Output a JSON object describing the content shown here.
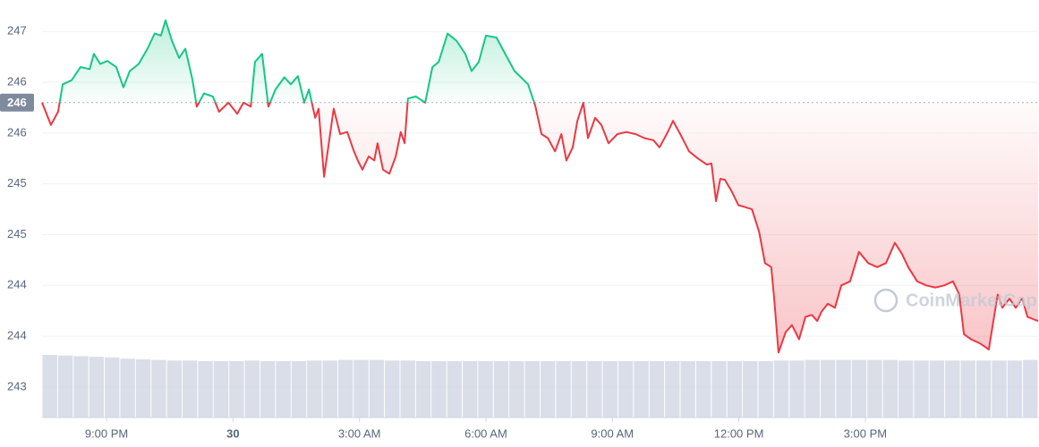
{
  "chart_data": {
    "type": "line",
    "watermark": "CoinMarketCap",
    "baseline": {
      "value": 246.2,
      "label": "246"
    },
    "x": [
      19.47,
      19.68,
      19.85,
      19.96,
      20.17,
      20.38,
      20.6,
      20.7,
      20.85,
      21.02,
      21.23,
      21.4,
      21.55,
      21.76,
      21.97,
      22.14,
      22.29,
      22.4,
      22.55,
      22.72,
      22.87,
      23.04,
      23.14,
      23.31,
      23.52,
      23.67,
      23.89,
      24.1,
      24.25,
      24.42,
      24.52,
      24.69,
      24.84,
      25.01,
      25.22,
      25.37,
      25.54,
      25.69,
      25.8,
      25.95,
      26.03,
      26.16,
      26.39,
      26.54,
      26.71,
      26.86,
      26.96,
      27.07,
      27.22,
      27.35,
      27.43,
      27.56,
      27.71,
      27.86,
      27.98,
      28.07,
      28.15,
      28.34,
      28.56,
      28.73,
      28.88,
      29.09,
      29.3,
      29.51,
      29.66,
      29.83,
      30.0,
      30.25,
      30.47,
      30.68,
      31.0,
      31.17,
      31.32,
      31.47,
      31.64,
      31.79,
      31.91,
      32.06,
      32.17,
      32.31,
      32.42,
      32.59,
      32.74,
      32.91,
      33.12,
      33.33,
      33.55,
      33.76,
      33.97,
      34.12,
      34.29,
      34.44,
      34.61,
      34.82,
      35.03,
      35.24,
      35.35,
      35.46,
      35.56,
      35.67,
      35.84,
      35.99,
      36.16,
      36.31,
      36.48,
      36.62,
      36.77,
      36.84,
      36.94,
      37.11,
      37.26,
      37.43,
      37.58,
      37.73,
      37.86,
      37.96,
      38.11,
      38.28,
      38.43,
      38.64,
      38.85,
      39.07,
      39.28,
      39.49,
      39.7,
      39.87,
      40.02,
      40.23,
      40.45,
      40.66,
      40.87,
      41.08,
      41.23,
      41.34,
      41.51,
      41.72,
      41.93,
      42.14,
      42.25,
      42.42,
      42.57,
      42.72,
      42.85,
      43.1
    ],
    "values": [
      246.2,
      245.98,
      246.11,
      246.38,
      246.42,
      246.55,
      246.53,
      246.68,
      246.58,
      246.61,
      246.55,
      246.35,
      246.51,
      246.58,
      246.73,
      246.88,
      246.86,
      247.01,
      246.81,
      246.64,
      246.73,
      246.42,
      246.16,
      246.29,
      246.26,
      246.11,
      246.2,
      246.09,
      246.2,
      246.16,
      246.6,
      246.68,
      246.16,
      246.33,
      246.45,
      246.38,
      246.46,
      246.2,
      246.33,
      246.05,
      246.14,
      245.47,
      246.14,
      245.89,
      245.91,
      245.73,
      245.63,
      245.54,
      245.67,
      245.63,
      245.8,
      245.54,
      245.5,
      245.67,
      245.91,
      245.8,
      246.24,
      246.26,
      246.2,
      246.55,
      246.6,
      246.88,
      246.81,
      246.68,
      246.51,
      246.6,
      246.86,
      246.84,
      246.67,
      246.51,
      246.38,
      246.17,
      245.89,
      245.85,
      245.72,
      245.89,
      245.63,
      245.76,
      246.02,
      246.2,
      245.85,
      246.05,
      245.98,
      245.8,
      245.89,
      245.91,
      245.89,
      245.85,
      245.83,
      245.76,
      245.89,
      246.02,
      245.89,
      245.72,
      245.65,
      245.59,
      245.6,
      245.23,
      245.45,
      245.44,
      245.32,
      245.19,
      245.17,
      245.15,
      244.93,
      244.62,
      244.58,
      244.27,
      243.74,
      243.94,
      244.01,
      243.87,
      244.09,
      244.11,
      244.05,
      244.14,
      244.22,
      244.18,
      244.4,
      244.44,
      244.73,
      244.62,
      244.58,
      244.62,
      244.82,
      244.71,
      244.58,
      244.44,
      244.4,
      244.38,
      244.4,
      244.44,
      244.31,
      243.92,
      243.87,
      243.83,
      243.77,
      244.31,
      244.18,
      244.27,
      244.18,
      244.27,
      244.09,
      244.05
    ],
    "up_color": "#16c784",
    "down_color": "#ea3943",
    "volume": {
      "color": "#cfd6e4",
      "values": [
        100,
        99,
        98,
        97,
        96,
        94,
        93,
        92,
        91,
        91,
        90,
        90,
        90,
        91,
        90,
        90,
        90,
        91,
        91,
        92,
        92,
        92,
        91,
        91,
        90,
        90,
        90,
        90,
        90,
        90,
        90,
        90,
        90,
        90,
        90,
        90,
        90,
        90,
        90,
        90,
        90,
        90,
        90,
        90,
        90,
        90,
        90,
        91,
        91,
        92,
        92,
        92,
        92,
        92,
        92,
        91,
        91,
        91,
        91,
        91,
        91,
        91,
        91,
        92
      ]
    },
    "xlim": [
      19.47,
      43.1
    ],
    "ylim": [
      243.1,
      247.21
    ],
    "xticks": [
      {
        "value": 21,
        "label": "9:00 PM"
      },
      {
        "value": 24,
        "label": "30"
      },
      {
        "value": 27,
        "label": "3:00 AM"
      },
      {
        "value": 30,
        "label": "6:00 AM"
      },
      {
        "value": 33,
        "label": "9:00 AM"
      },
      {
        "value": 36,
        "label": "12:00 PM"
      },
      {
        "value": 39,
        "label": "3:00 PM"
      }
    ],
    "yticks": [
      {
        "value": 246.9,
        "label": "247"
      },
      {
        "value": 246.4,
        "label": "246"
      },
      {
        "value": 245.9,
        "label": "246"
      },
      {
        "value": 245.4,
        "label": "245"
      },
      {
        "value": 244.9,
        "label": "245"
      },
      {
        "value": 244.4,
        "label": "244"
      },
      {
        "value": 243.9,
        "label": "244"
      },
      {
        "value": 243.4,
        "label": "243"
      }
    ],
    "grid": true
  }
}
